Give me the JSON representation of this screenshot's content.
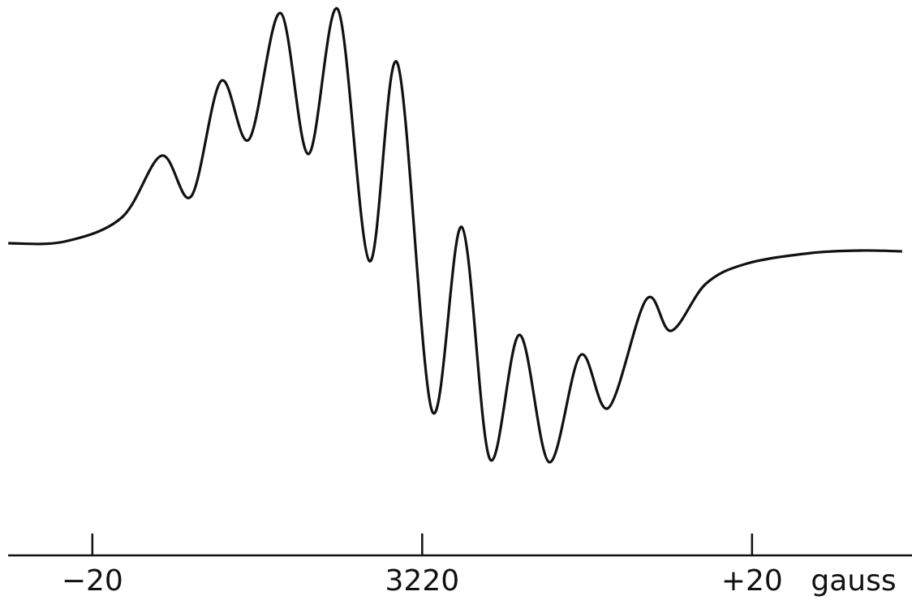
{
  "chart_data": {
    "type": "line",
    "x": [
      -25.1,
      -21.7,
      -18.2,
      -15.8,
      -14.0,
      -12.2,
      -10.5,
      -8.6,
      -6.9,
      -5.1,
      -3.2,
      -1.5,
      0.6,
      2.4,
      4.1,
      5.9,
      7.7,
      9.6,
      11.3,
      13.6,
      15.1,
      17.2,
      19.7,
      23.6,
      26.6,
      29.1
    ],
    "values": [
      0.0,
      0.2,
      3.2,
      10.8,
      5.8,
      20.0,
      12.8,
      28.4,
      11.0,
      28.8,
      -2.2,
      22.2,
      -20.7,
      2.0,
      -26.6,
      -11.3,
      -27.0,
      -13.8,
      -20.3,
      -6.9,
      -10.8,
      -5.0,
      -2.5,
      -1.2,
      -0.9,
      -1.0
    ],
    "color": "#111111",
    "xlim": [
      -25.6,
      29.7
    ],
    "ylim": [
      -44,
      30
    ],
    "xticks": [
      {
        "value": -20,
        "label": "−20"
      },
      {
        "value": 0,
        "label": "3220"
      },
      {
        "value": 20,
        "label": "+20"
      }
    ],
    "xlabel": "gauss"
  }
}
